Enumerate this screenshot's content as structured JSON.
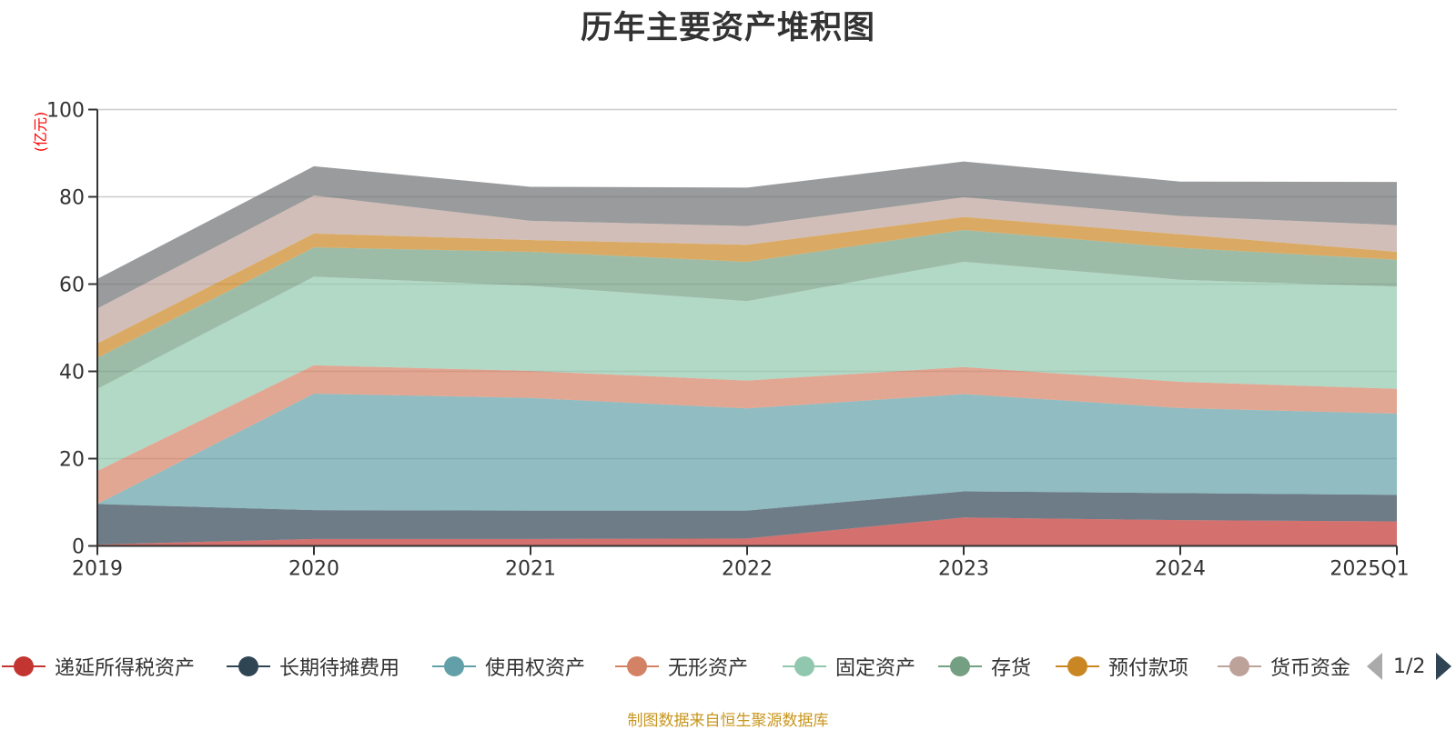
{
  "title": "历年主要资产堆积图",
  "unit_label": "(亿元)",
  "footer": "制图数据来自恒生聚源数据库",
  "legend": {
    "items": [
      {
        "name": "递延所得税资产",
        "color": "#c23531"
      },
      {
        "name": "长期待摊费用",
        "color": "#2f4554"
      },
      {
        "name": "使用权资产",
        "color": "#61a0a8"
      },
      {
        "name": "无形资产",
        "color": "#d48265"
      },
      {
        "name": "固定资产",
        "color": "#91c7ae"
      },
      {
        "name": "存货",
        "color": "#749f83"
      },
      {
        "name": "预付款项",
        "color": "#ca8622"
      },
      {
        "name": "货币资金",
        "color": "#bda29a"
      }
    ],
    "page": "1/2"
  },
  "chart_data": {
    "type": "area",
    "stacked": true,
    "title": "历年主要资产堆积图",
    "ylabel": "(亿元)",
    "xlabel": "",
    "categories": [
      "2019",
      "2020",
      "2021",
      "2022",
      "2023",
      "2024",
      "2025Q1"
    ],
    "ylim": [
      0,
      100
    ],
    "yticks": [
      "0",
      "20",
      "40",
      "60",
      "80",
      "100"
    ],
    "grid": true,
    "legend_position": "bottom",
    "series": [
      {
        "name": "递延所得税资产",
        "color": "#c23531",
        "values": [
          0.3,
          1.6,
          1.6,
          1.7,
          6.5,
          5.9,
          5.6
        ]
      },
      {
        "name": "长期待摊费用",
        "color": "#2f4554",
        "values": [
          9.3,
          6.6,
          6.5,
          6.4,
          6.0,
          6.2,
          6.1
        ]
      },
      {
        "name": "使用权资产",
        "color": "#61a0a8",
        "values": [
          0.0,
          26.7,
          25.8,
          23.4,
          22.3,
          19.5,
          18.6
        ]
      },
      {
        "name": "无形资产",
        "color": "#d48265",
        "values": [
          7.6,
          6.5,
          6.2,
          6.4,
          6.2,
          6.0,
          5.7
        ]
      },
      {
        "name": "固定资产",
        "color": "#91c7ae",
        "values": [
          18.8,
          20.3,
          19.5,
          18.2,
          24.1,
          23.4,
          23.4
        ]
      },
      {
        "name": "存货",
        "color": "#749f83",
        "values": [
          7.1,
          6.7,
          7.8,
          9.0,
          7.3,
          7.3,
          6.2
        ]
      },
      {
        "name": "预付款项",
        "color": "#ca8622",
        "values": [
          3.3,
          3.2,
          2.7,
          3.9,
          3.0,
          3.1,
          1.8
        ]
      },
      {
        "name": "货币资金",
        "color": "#bda29a",
        "values": [
          8.0,
          8.7,
          4.4,
          4.3,
          4.5,
          4.2,
          6.1
        ]
      },
      {
        "name": "",
        "color": "#6e7074",
        "values": [
          6.8,
          6.7,
          7.8,
          8.8,
          8.2,
          7.9,
          9.9
        ]
      }
    ]
  }
}
